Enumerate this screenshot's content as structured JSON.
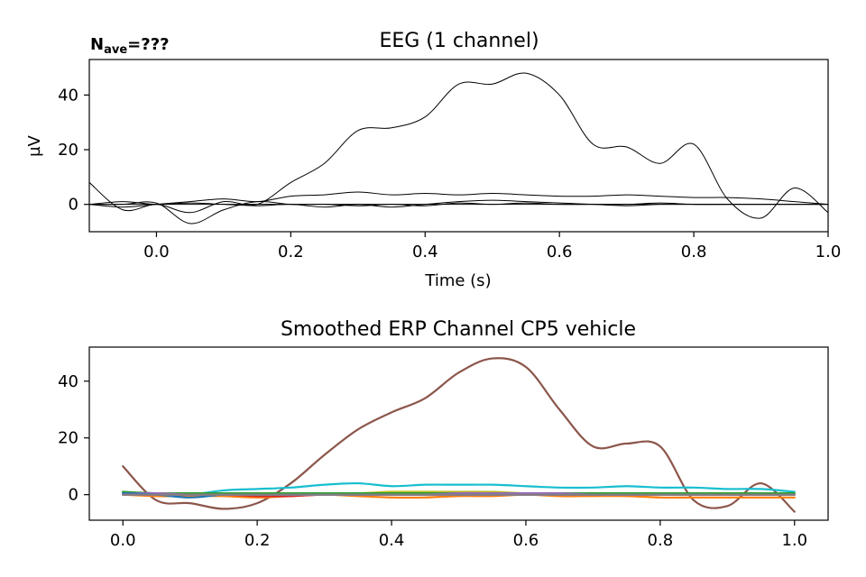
{
  "chart_data": [
    {
      "type": "line",
      "title": "EEG (1 channel)",
      "xlabel": "Time (s)",
      "ylabel": "µV",
      "annotation": {
        "prefix": "N",
        "subscript": "ave",
        "suffix": "=",
        "value": "???"
      },
      "xlim": [
        -0.1,
        1.0
      ],
      "ylim": [
        -10,
        53
      ],
      "xticks": [
        "0.0",
        "0.2",
        "0.4",
        "0.6",
        "0.8",
        "1.0"
      ],
      "yticks": [
        "0",
        "20",
        "40"
      ],
      "grid": false,
      "series_color": "#000000",
      "x": [
        -0.1,
        -0.05,
        0.0,
        0.05,
        0.1,
        0.15,
        0.2,
        0.25,
        0.3,
        0.35,
        0.4,
        0.45,
        0.5,
        0.55,
        0.6,
        0.65,
        0.7,
        0.75,
        0.8,
        0.85,
        0.9,
        0.95,
        1.0
      ],
      "series": [
        {
          "values": [
            8,
            -2,
            0,
            -3,
            1,
            0,
            8,
            15,
            27,
            28,
            32,
            44,
            44,
            48,
            40,
            22,
            21,
            15,
            22,
            2,
            -5,
            6,
            -3
          ]
        },
        {
          "values": [
            0,
            -1,
            0,
            1,
            2,
            1,
            3,
            3.5,
            4.5,
            3.5,
            4,
            3.5,
            4,
            3.5,
            3,
            3,
            3.5,
            3,
            2.5,
            2.5,
            2,
            1,
            0
          ]
        },
        {
          "values": [
            0,
            0,
            0.5,
            -7,
            -2,
            1,
            0,
            0,
            -0.5,
            0,
            -0.5,
            0.5,
            0,
            0.5,
            0,
            0,
            0,
            0.5,
            0,
            0,
            0,
            0,
            0
          ]
        },
        {
          "values": [
            0,
            0,
            0,
            0,
            0,
            0,
            0,
            0,
            0,
            0,
            0,
            0,
            0,
            0,
            0,
            0,
            0,
            0,
            0,
            0,
            0,
            0,
            0
          ]
        },
        {
          "values": [
            0,
            1,
            0,
            0.5,
            0,
            -0.5,
            0,
            -1,
            0,
            -1,
            0,
            1,
            1.5,
            1,
            0.5,
            0,
            -0.5,
            0,
            0,
            0,
            0,
            0,
            0
          ]
        }
      ]
    },
    {
      "type": "line",
      "title": "Smoothed ERP Channel CP5 vehicle",
      "xlim": [
        -0.05,
        1.05
      ],
      "ylim": [
        -9,
        52
      ],
      "xticks": [
        "0.0",
        "0.2",
        "0.4",
        "0.6",
        "0.8",
        "1.0"
      ],
      "yticks": [
        "0",
        "20",
        "40"
      ],
      "grid": false,
      "x": [
        0.0,
        0.05,
        0.1,
        0.15,
        0.2,
        0.25,
        0.3,
        0.35,
        0.4,
        0.45,
        0.5,
        0.55,
        0.6,
        0.65,
        0.7,
        0.75,
        0.8,
        0.85,
        0.9,
        0.95,
        1.0
      ],
      "series": [
        {
          "color": "#8c564b",
          "values": [
            10,
            -2,
            -3,
            -5,
            -3,
            4,
            14,
            23,
            29,
            34,
            43,
            48,
            45,
            30,
            17,
            18,
            17,
            -2,
            -4,
            4,
            -6
          ]
        },
        {
          "color": "#17becf",
          "values": [
            1,
            0,
            0,
            1.5,
            2,
            2.5,
            3.5,
            4,
            3,
            3.5,
            3.5,
            3.5,
            3,
            2.5,
            2.5,
            3,
            2.5,
            2.5,
            2,
            2,
            1
          ]
        },
        {
          "color": "#ff7f0e",
          "values": [
            0,
            -0.5,
            -0.5,
            -0.5,
            -1,
            -0.5,
            0,
            -0.5,
            -1,
            -1,
            -0.5,
            -0.5,
            0,
            -0.5,
            -0.5,
            -0.5,
            -1,
            -1,
            -1,
            -1,
            -1
          ]
        },
        {
          "color": "#bcbd22",
          "values": [
            0.5,
            0.5,
            0.5,
            0.5,
            0.5,
            0.5,
            0.5,
            0.5,
            1,
            1,
            1,
            1,
            0.5,
            0.5,
            0.5,
            0.5,
            0.5,
            0.5,
            0.5,
            0.5,
            0
          ]
        },
        {
          "color": "#2ca02c",
          "values": [
            1,
            0.5,
            0.5,
            0.5,
            0.5,
            0.5,
            0.5,
            0.5,
            0.5,
            0.5,
            0.5,
            0.5,
            0.5,
            0.5,
            0.5,
            0.5,
            0.5,
            0.5,
            0.5,
            0.5,
            0.5
          ]
        },
        {
          "color": "#d62728",
          "values": [
            0,
            0,
            0,
            0,
            -0.5,
            -0.5,
            0,
            0,
            0,
            0,
            0,
            0,
            0,
            0,
            0,
            0,
            0,
            0,
            0,
            0,
            0
          ]
        },
        {
          "color": "#9467bd",
          "values": [
            0.5,
            0.5,
            0,
            0,
            0,
            0,
            0,
            0,
            0,
            0,
            0.5,
            0.5,
            0.5,
            0.5,
            0,
            0,
            0,
            0,
            0,
            0,
            0
          ]
        },
        {
          "color": "#1f77b4",
          "values": [
            0.5,
            0,
            -1,
            0,
            0,
            0,
            0,
            0,
            0,
            0,
            0,
            0,
            0,
            0,
            0,
            0,
            0,
            0,
            0,
            0,
            0
          ]
        },
        {
          "color": "#e377c2",
          "values": [
            0,
            0,
            0,
            0,
            0,
            0,
            0,
            0,
            0,
            0,
            0,
            0,
            0,
            0,
            0,
            0,
            0,
            0,
            0,
            0,
            0
          ]
        },
        {
          "color": "#7f7f7f",
          "values": [
            0,
            0,
            0,
            0,
            0,
            0,
            0,
            0,
            0,
            0,
            0,
            0,
            0,
            0,
            0,
            0,
            0,
            0,
            0,
            0,
            0
          ]
        }
      ]
    }
  ]
}
